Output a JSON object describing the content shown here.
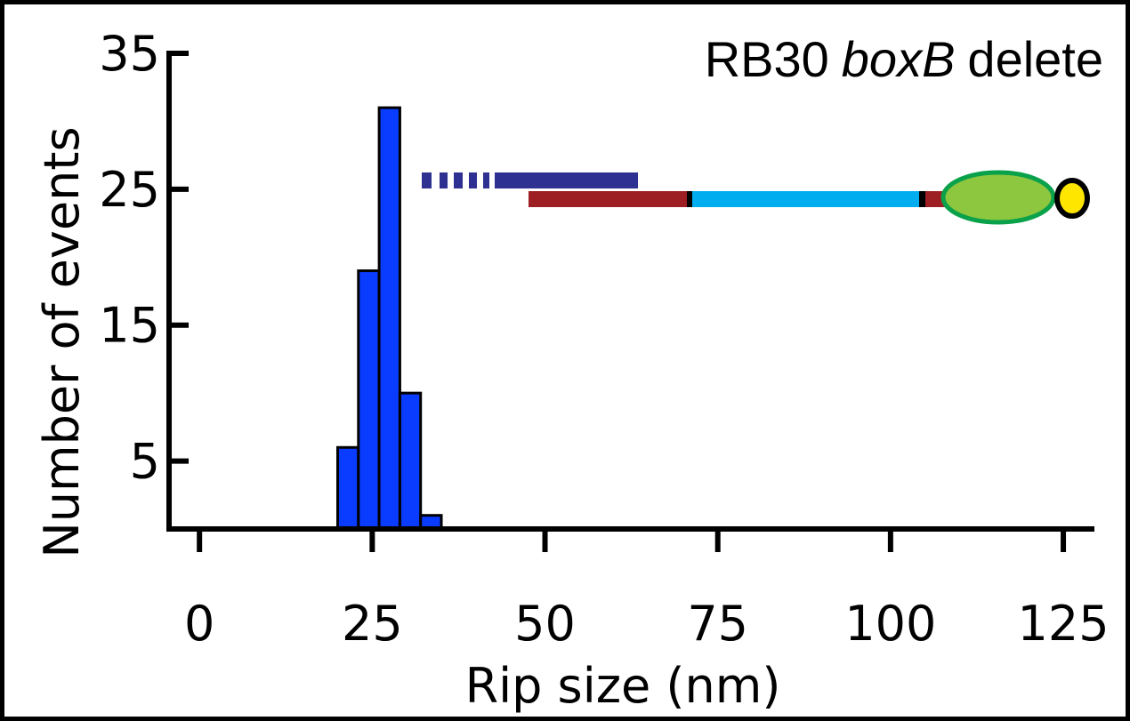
{
  "chart_data": {
    "type": "histogram",
    "title": [
      "RB30",
      "boxB",
      "delete"
    ],
    "x_label": "Rip size (nm)",
    "y_label": "Number of events",
    "bins": [
      20,
      23,
      26,
      29,
      32,
      35
    ],
    "counts": [
      6,
      19,
      31,
      10,
      1
    ],
    "color": "#0a3cff",
    "xlim": [
      -4.4,
      129.5
    ],
    "ylim": [
      0,
      35
    ],
    "xticks": [
      0,
      25,
      50,
      75,
      100,
      125
    ],
    "yticks": [
      5,
      15,
      25,
      35
    ]
  }
}
